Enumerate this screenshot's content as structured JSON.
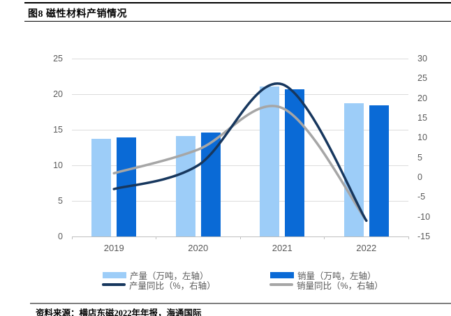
{
  "header": {
    "title": "图8  磁性材料产销情况"
  },
  "footer": {
    "source": "资料来源：横店东磁2022年年报，海通国际"
  },
  "chart_data": {
    "type": "bar",
    "subtype": "bar-line-combo",
    "categories": [
      "2019",
      "2020",
      "2021",
      "2022"
    ],
    "series": [
      {
        "name": "产量（万吨，左轴）",
        "kind": "bar",
        "axis": "left",
        "color": "#9DCDF8",
        "values": [
          13.7,
          14.1,
          21.1,
          18.7
        ]
      },
      {
        "name": "销量（万吨，左轴）",
        "kind": "bar",
        "axis": "left",
        "color": "#0A6AD6",
        "values": [
          13.9,
          14.6,
          20.7,
          18.4
        ]
      },
      {
        "name": "产量同比（%，右轴）",
        "kind": "line",
        "axis": "right",
        "color": "#17375E",
        "values": [
          -3,
          3,
          23.5,
          -11
        ]
      },
      {
        "name": "销量同比（%，右轴）",
        "kind": "line",
        "axis": "right",
        "color": "#A6A6A6",
        "values": [
          1,
          7,
          17.5,
          -11
        ]
      }
    ],
    "left_axis": {
      "min": 0,
      "max": 25,
      "ticks": [
        0,
        5,
        10,
        15,
        20,
        25
      ]
    },
    "right_axis": {
      "min": -15,
      "max": 30,
      "ticks": [
        -15,
        -10,
        -5,
        0,
        5,
        10,
        15,
        20,
        25,
        30
      ]
    },
    "grid": true,
    "legend_position": "bottom",
    "colors": {
      "grid_line": "#DCDCDC",
      "axis_line": "#BFBFBF",
      "axis_text": "#595959"
    }
  }
}
